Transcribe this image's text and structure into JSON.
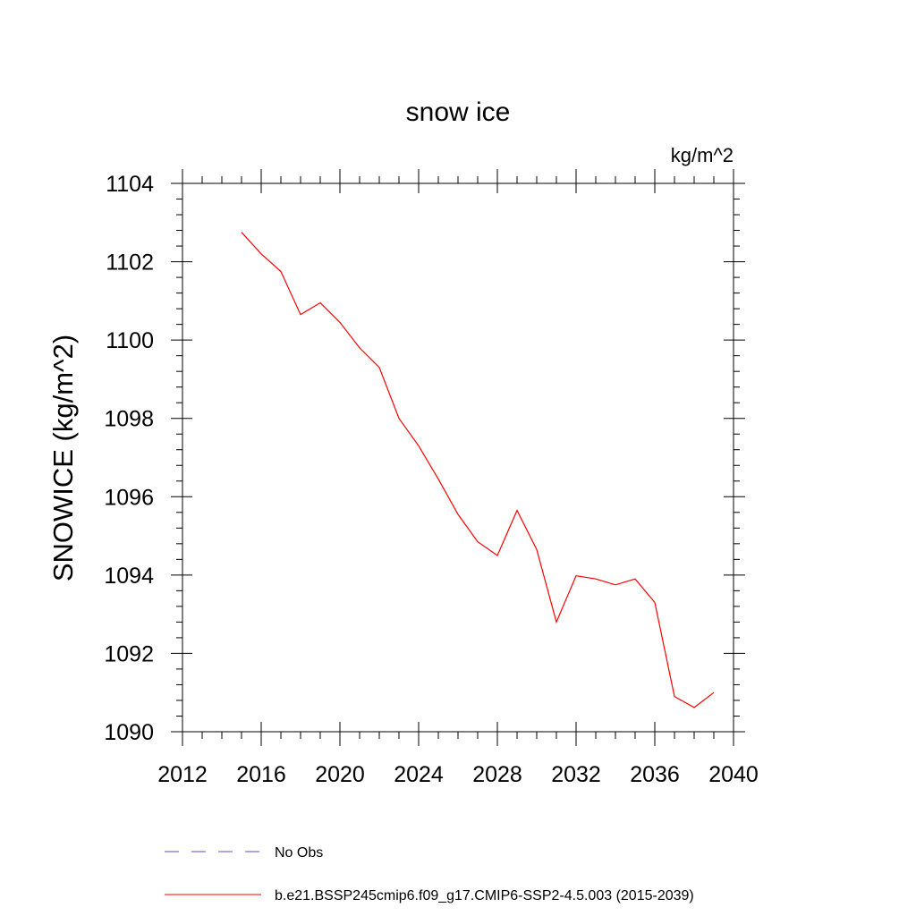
{
  "chart_data": {
    "type": "line",
    "title": "snow ice",
    "units_label": "kg/m^2",
    "ylabel": "SNOWICE  (kg/m^2)",
    "xlabel": "",
    "xlim": [
      2012,
      2040
    ],
    "ylim": [
      1090,
      1104
    ],
    "x_ticks": [
      2012,
      2016,
      2020,
      2024,
      2028,
      2032,
      2036,
      2040
    ],
    "y_ticks": [
      1090,
      1092,
      1094,
      1096,
      1098,
      1100,
      1102,
      1104
    ],
    "x_tick_labels": [
      "2012",
      "2016",
      "2020",
      "2024",
      "2028",
      "2032",
      "2036",
      "2040"
    ],
    "y_tick_labels": [
      "1090",
      "1092",
      "1094",
      "1096",
      "1098",
      "1100",
      "1102",
      "1104"
    ],
    "grid": false,
    "legend_position": "bottom",
    "series": [
      {
        "name": "b.e21.BSSP245cmip6.f09_g17.CMIP6-SSP2-4.5.003 (2015-2039)",
        "color": "#ff0000",
        "style": "solid",
        "x": [
          2015,
          2016,
          2017,
          2018,
          2019,
          2020,
          2021,
          2022,
          2023,
          2024,
          2025,
          2026,
          2027,
          2028,
          2029,
          2030,
          2031,
          2032,
          2033,
          2034,
          2035,
          2036,
          2037,
          2038,
          2039
        ],
        "y": [
          1102.75,
          1102.2,
          1101.75,
          1100.65,
          1100.95,
          1100.45,
          1099.8,
          1099.3,
          1098.0,
          1097.3,
          1096.45,
          1095.55,
          1094.85,
          1094.5,
          1095.65,
          1094.65,
          1092.8,
          1093.98,
          1093.9,
          1093.75,
          1093.9,
          1093.3,
          1090.9,
          1090.62,
          1091.0
        ]
      }
    ],
    "legend": [
      {
        "label": "No Obs",
        "color": "#5a52c8",
        "style": "dashed"
      },
      {
        "label": "b.e21.BSSP245cmip6.f09_g17.CMIP6-SSP2-4.5.003 (2015-2039)",
        "color": "#ff0000",
        "style": "solid"
      }
    ]
  }
}
